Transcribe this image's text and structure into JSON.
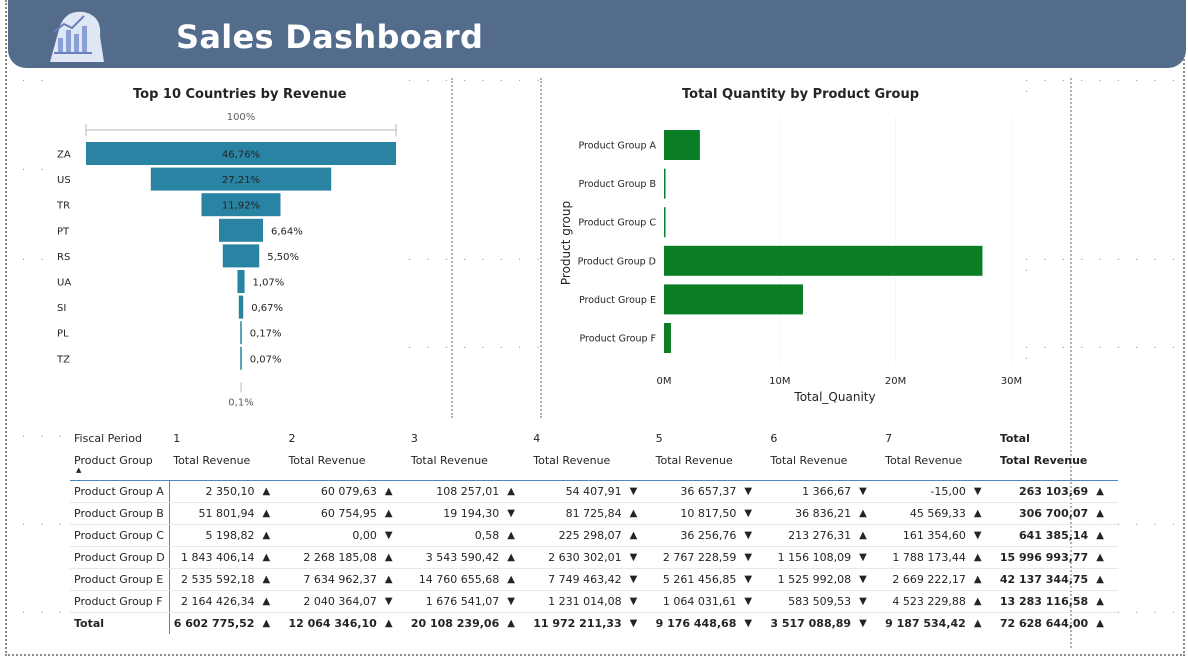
{
  "header": {
    "title": "Sales Dashboard",
    "logo_icon": "bar-chart-icon"
  },
  "funnel": {
    "title": "Top 10 Countries by Revenue",
    "top_label": "100%",
    "bottom_label": "0,1%",
    "color": "#2983a3",
    "chart_data": {
      "type": "bar",
      "categories": [
        "ZA",
        "US",
        "TR",
        "PT",
        "RS",
        "UA",
        "SI",
        "PL",
        "TZ"
      ],
      "values": [
        46.76,
        27.21,
        11.92,
        6.64,
        5.5,
        1.07,
        0.67,
        0.17,
        0.07
      ],
      "value_labels": [
        "46,76%",
        "27,21%",
        "11,92%",
        "6,64%",
        "5,50%",
        "1,07%",
        "0,67%",
        "0,17%",
        "0,07%"
      ]
    }
  },
  "bar": {
    "title": "Total Quantity by Product Group",
    "color": "#0b7d24",
    "chart_data": {
      "type": "bar",
      "orientation": "horizontal",
      "categories": [
        "Product Group A",
        "Product Group B",
        "Product Group C",
        "Product Group D",
        "Product Group E",
        "Product Group F"
      ],
      "values": [
        3.1,
        0.1,
        0.1,
        27.5,
        12.0,
        0.6
      ],
      "value_unit": "M",
      "xlabel": "Total_Quanity",
      "ylabel": "Product group",
      "xlim": [
        0,
        30
      ],
      "xticks": [
        "0M",
        "10M",
        "20M",
        "30M"
      ]
    }
  },
  "matrix": {
    "row_header_label": "Fiscal Period",
    "group_header_label": "Product Group",
    "periods": [
      "1",
      "2",
      "3",
      "4",
      "5",
      "6",
      "7",
      "Total"
    ],
    "measure_label": "Total Revenue",
    "rows": [
      {
        "name": "Product Group A",
        "cells": [
          [
            "2 350,10",
            "▲"
          ],
          [
            "60 079,63",
            "▲"
          ],
          [
            "108 257,01",
            "▲"
          ],
          [
            "54 407,91",
            "▼"
          ],
          [
            "36 657,37",
            "▼"
          ],
          [
            "1 366,67",
            "▼"
          ],
          [
            "-15,00",
            "▼"
          ],
          [
            "263 103,69",
            "▲"
          ]
        ]
      },
      {
        "name": "Product Group B",
        "cells": [
          [
            "51 801,94",
            "▲"
          ],
          [
            "60 754,95",
            "▲"
          ],
          [
            "19 194,30",
            "▼"
          ],
          [
            "81 725,84",
            "▲"
          ],
          [
            "10 817,50",
            "▼"
          ],
          [
            "36 836,21",
            "▲"
          ],
          [
            "45 569,33",
            "▲"
          ],
          [
            "306 700,07",
            "▲"
          ]
        ]
      },
      {
        "name": "Product Group C",
        "cells": [
          [
            "5 198,82",
            "▲"
          ],
          [
            "0,00",
            "▼"
          ],
          [
            "0,58",
            "▲"
          ],
          [
            "225 298,07",
            "▲"
          ],
          [
            "36 256,76",
            "▼"
          ],
          [
            "213 276,31",
            "▲"
          ],
          [
            "161 354,60",
            "▼"
          ],
          [
            "641 385,14",
            "▲"
          ]
        ]
      },
      {
        "name": "Product Group D",
        "cells": [
          [
            "1 843 406,14",
            "▲"
          ],
          [
            "2 268 185,08",
            "▲"
          ],
          [
            "3 543 590,42",
            "▲"
          ],
          [
            "2 630 302,01",
            "▼"
          ],
          [
            "2 767 228,59",
            "▼"
          ],
          [
            "1 156 108,09",
            "▼"
          ],
          [
            "1 788 173,44",
            "▲"
          ],
          [
            "15 996 993,77",
            "▲"
          ]
        ]
      },
      {
        "name": "Product Group E",
        "cells": [
          [
            "2 535 592,18",
            "▲"
          ],
          [
            "7 634 962,37",
            "▲"
          ],
          [
            "14 760 655,68",
            "▲"
          ],
          [
            "7 749 463,42",
            "▼"
          ],
          [
            "5 261 456,85",
            "▼"
          ],
          [
            "1 525 992,08",
            "▼"
          ],
          [
            "2 669 222,17",
            "▲"
          ],
          [
            "42 137 344,75",
            "▲"
          ]
        ]
      },
      {
        "name": "Product Group F",
        "cells": [
          [
            "2 164 426,34",
            "▲"
          ],
          [
            "2 040 364,07",
            "▼"
          ],
          [
            "1 676 541,07",
            "▼"
          ],
          [
            "1 231 014,08",
            "▼"
          ],
          [
            "1 064 031,61",
            "▼"
          ],
          [
            "583 509,53",
            "▼"
          ],
          [
            "4 523 229,88",
            "▲"
          ],
          [
            "13 283 116,58",
            "▲"
          ]
        ]
      }
    ],
    "total_row": {
      "name": "Total",
      "cells": [
        [
          "6 602 775,52",
          "▲"
        ],
        [
          "12 064 346,10",
          "▲"
        ],
        [
          "20 108 239,06",
          "▲"
        ],
        [
          "11 972 211,33",
          "▼"
        ],
        [
          "9 176 448,68",
          "▼"
        ],
        [
          "3 517 088,89",
          "▼"
        ],
        [
          "9 187 534,42",
          "▲"
        ],
        [
          "72 628 644,00",
          "▲"
        ]
      ]
    }
  }
}
